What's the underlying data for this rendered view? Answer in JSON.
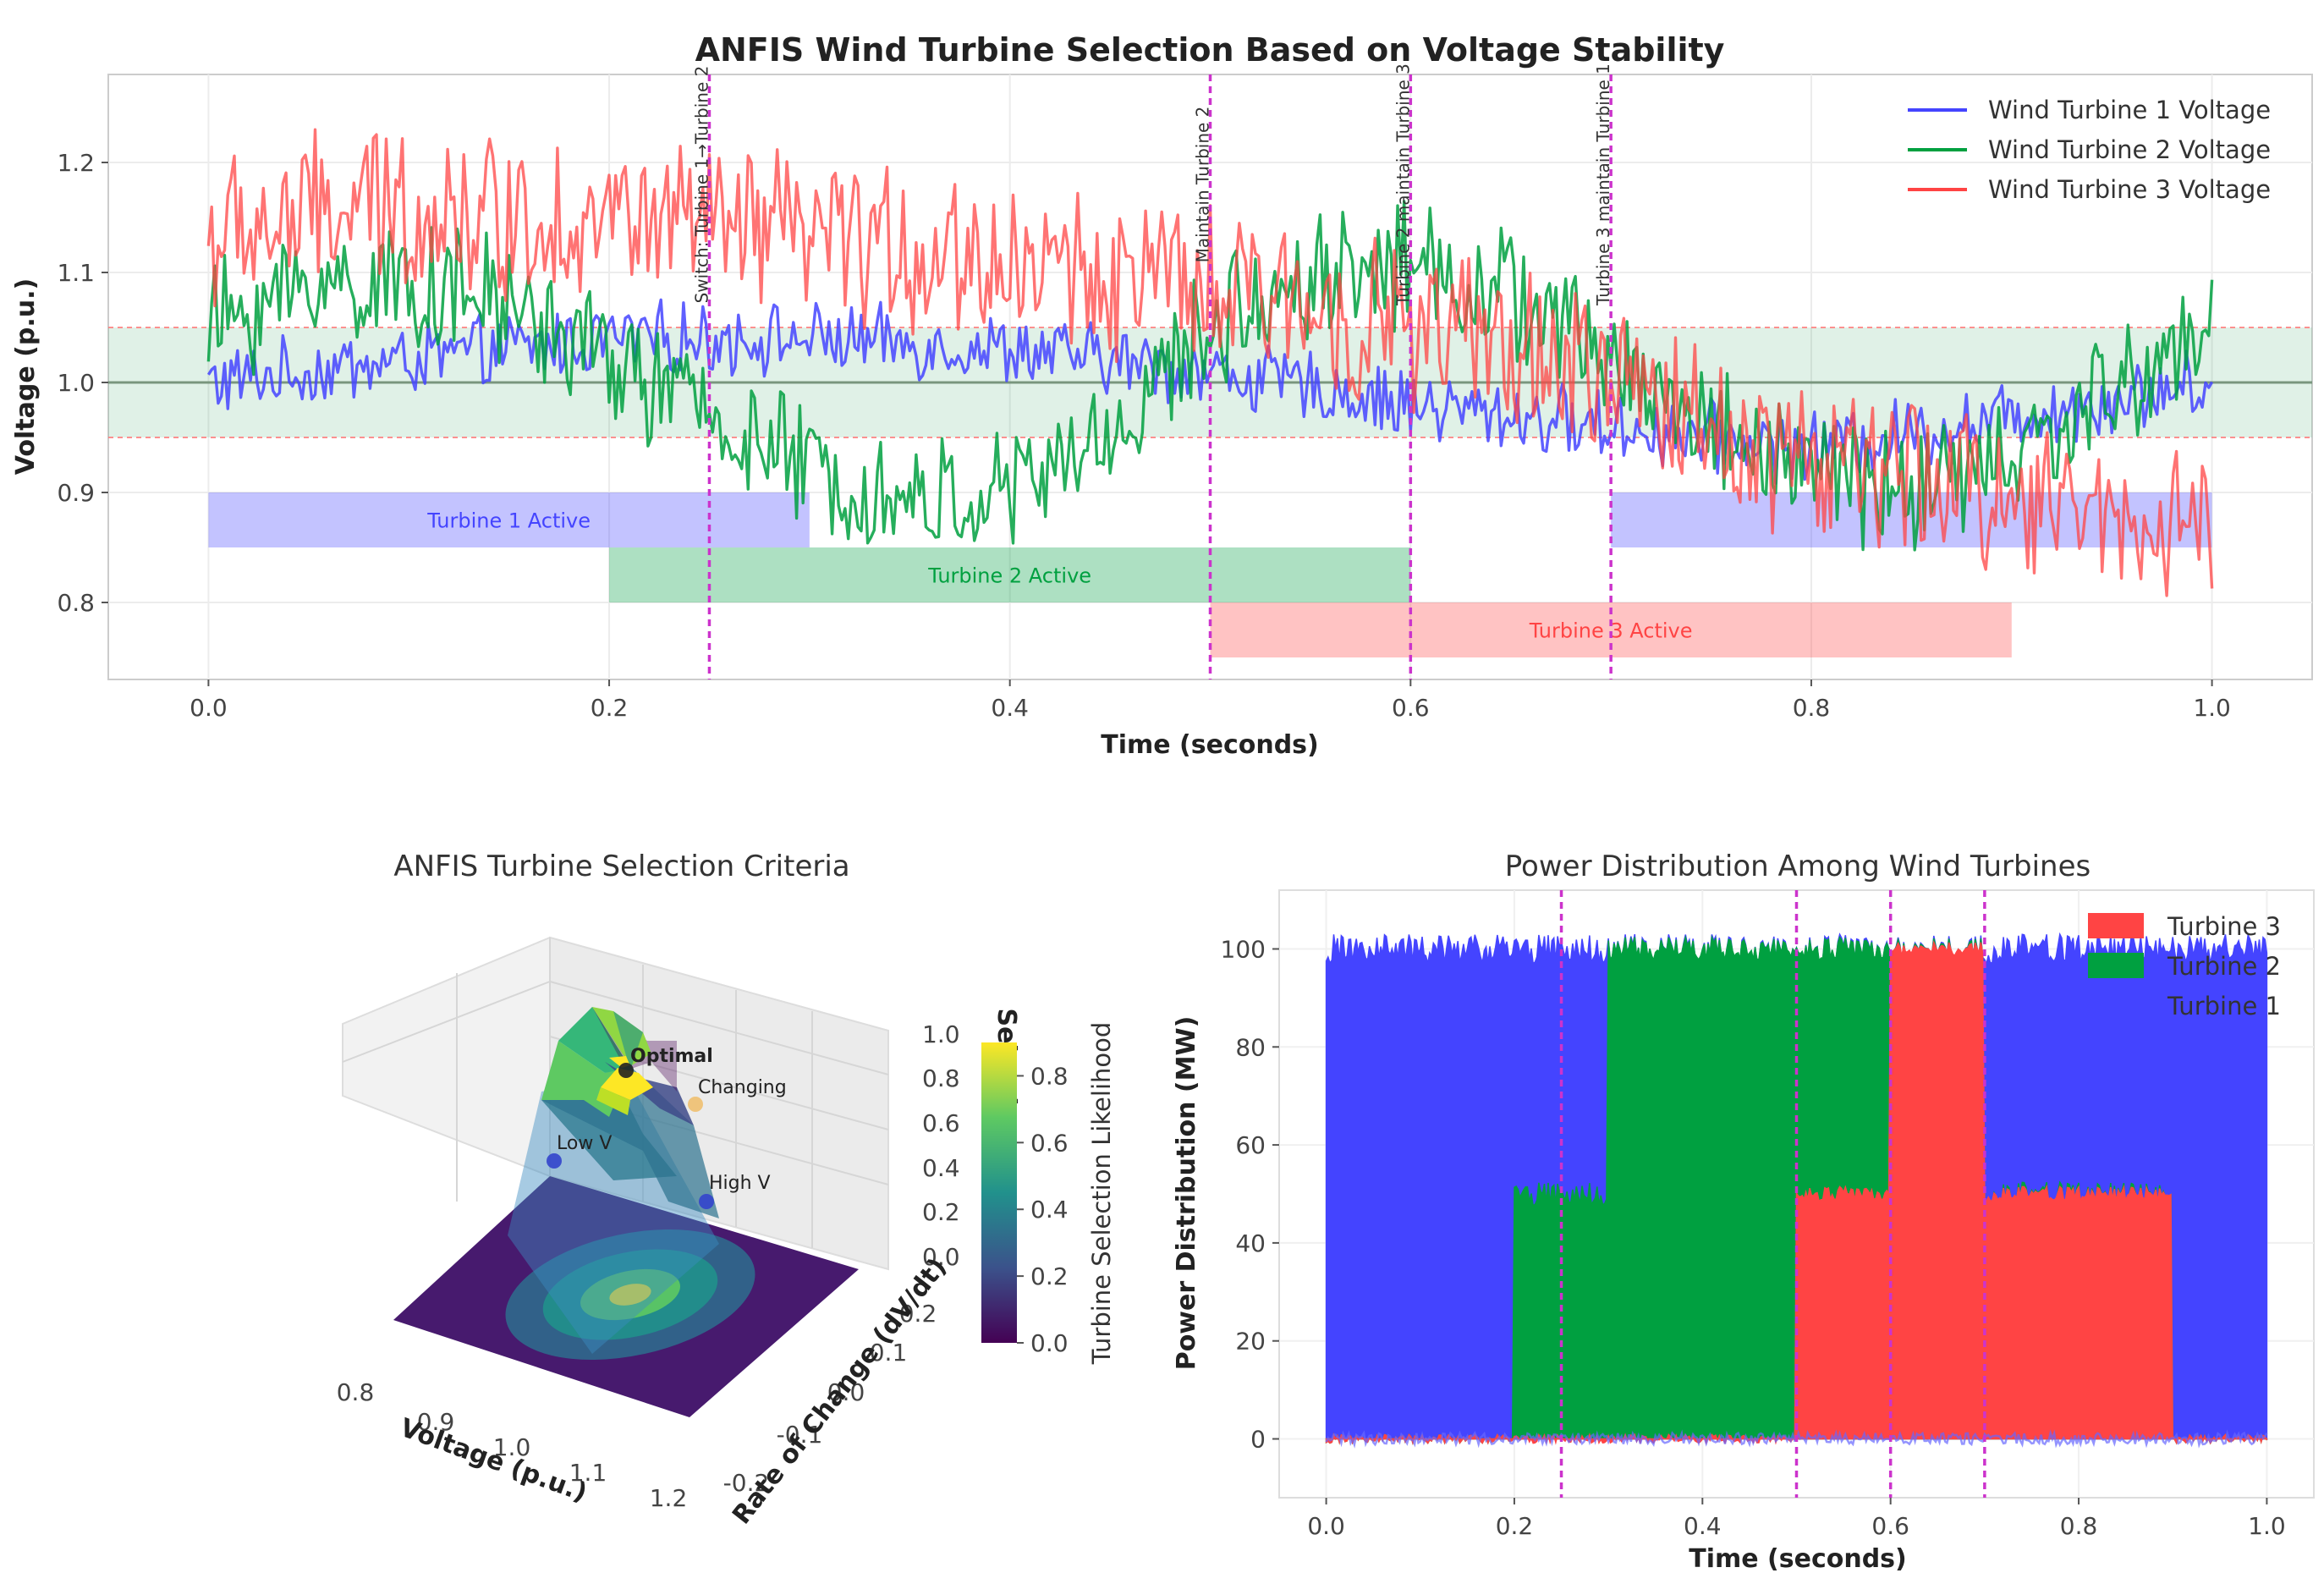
{
  "chart_data": [
    {
      "type": "line",
      "title": "ANFIS Wind Turbine Selection Based on Voltage Stability",
      "xlabel": "Time (seconds)",
      "ylabel": "Voltage (p.u.)",
      "xlim": [
        -0.05,
        1.05
      ],
      "ylim": [
        0.73,
        1.28
      ],
      "xticks": [
        0.0,
        0.2,
        0.4,
        0.6,
        0.8,
        1.0
      ],
      "xtick_labels": [
        "0.0",
        "0.2",
        "0.4",
        "0.6",
        "0.8",
        "1.0"
      ],
      "yticks": [
        0.8,
        0.9,
        1.0,
        1.1,
        1.2
      ],
      "ytick_labels": [
        "0.8",
        "0.9",
        "1.0",
        "1.1",
        "1.2"
      ],
      "grid": true,
      "legend_position": "top-right",
      "stable_band": {
        "low": 0.95,
        "high": 1.05,
        "nominal": 1.0
      },
      "series": [
        {
          "name": "Wind Turbine 1 Voltage",
          "color": "#4444ff",
          "x": [
            0.0,
            0.1,
            0.2,
            0.3,
            0.4,
            0.5,
            0.6,
            0.7,
            0.8,
            0.9,
            1.0
          ],
          "values": [
            1.0,
            1.02,
            1.04,
            1.04,
            1.03,
            1.01,
            0.98,
            0.96,
            0.94,
            0.97,
            1.0
          ]
        },
        {
          "name": "Wind Turbine 2 Voltage",
          "color": "#00a040",
          "x": [
            0.0,
            0.05,
            0.1,
            0.15,
            0.2,
            0.25,
            0.3,
            0.35,
            0.4,
            0.45,
            0.5,
            0.55,
            0.6,
            0.65,
            0.7,
            0.75,
            0.8,
            0.85,
            0.9,
            0.95,
            1.0
          ],
          "values": [
            1.05,
            1.09,
            1.09,
            1.07,
            1.02,
            0.97,
            0.92,
            0.89,
            0.9,
            0.95,
            1.05,
            1.1,
            1.11,
            1.08,
            1.02,
            0.96,
            0.92,
            0.9,
            0.93,
            0.99,
            1.05
          ]
        },
        {
          "name": "Wind Turbine 3 Voltage",
          "color": "#ff4444",
          "x": [
            0.0,
            0.05,
            0.1,
            0.15,
            0.2,
            0.25,
            0.3,
            0.35,
            0.4,
            0.45,
            0.5,
            0.55,
            0.6,
            0.65,
            0.7,
            0.75,
            0.8,
            0.85,
            0.9,
            0.95,
            1.0
          ],
          "values": [
            1.13,
            1.15,
            1.16,
            1.15,
            1.15,
            1.14,
            1.13,
            1.12,
            1.11,
            1.1,
            1.08,
            1.07,
            1.05,
            1.03,
            1.0,
            0.96,
            0.93,
            0.91,
            0.9,
            0.88,
            0.87
          ]
        }
      ],
      "active_bands": [
        {
          "label": "Turbine 1 Active",
          "start": 0.0,
          "end": 0.3,
          "low": 0.85,
          "high": 0.9,
          "color": "#4444ff"
        },
        {
          "label": "",
          "start": 0.7,
          "end": 1.0,
          "low": 0.85,
          "high": 0.9,
          "color": "#4444ff"
        },
        {
          "label": "Turbine 2 Active",
          "start": 0.2,
          "end": 0.6,
          "low": 0.8,
          "high": 0.85,
          "color": "#00a040"
        },
        {
          "label": "Turbine 3 Active",
          "start": 0.5,
          "end": 0.9,
          "low": 0.75,
          "high": 0.8,
          "color": "#ff4444"
        }
      ],
      "switch_lines": [
        {
          "x": 0.25,
          "label": "Switch: Turbine 1→Turbine 2"
        },
        {
          "x": 0.5,
          "label": "Maintain Turbine 2"
        },
        {
          "x": 0.6,
          "label": "Turbine 2 maintain Turbine 3"
        },
        {
          "x": 0.7,
          "label": "Turbine 3 maintain Turbine 1"
        }
      ]
    },
    {
      "type": "surface3d",
      "title": "ANFIS Turbine Selection Criteria",
      "xlabel": "Voltage (p.u.)",
      "ylabel": "Rate of Change (dV/dt)",
      "zlabel": "Selection",
      "colorbar_label": "Turbine Selection Likelihood",
      "colorbar_ticks": [
        "0.0",
        "0.2",
        "0.4",
        "0.6",
        "0.8"
      ],
      "x_ticks": [
        "0.8",
        "0.9",
        "1.0",
        "1.1",
        "1.2"
      ],
      "y_ticks": [
        "-0.2",
        "-0.1",
        "0.0",
        "0.1",
        "0.2"
      ],
      "z_ticks": [
        "0.0",
        "0.2",
        "0.4",
        "0.6",
        "0.8",
        "1.0"
      ],
      "points": [
        {
          "label": "Optimal",
          "voltage": 1.0,
          "rate": 0.0,
          "value": 1.0,
          "color": "#222222"
        },
        {
          "label": "Changing",
          "voltage": 1.0,
          "rate": 0.15,
          "value": 0.7,
          "color": "#f0c070"
        },
        {
          "label": "Low V",
          "voltage": 0.85,
          "rate": 0.0,
          "value": 0.2,
          "color": "#3344cc"
        },
        {
          "label": "High V",
          "voltage": 1.15,
          "rate": 0.0,
          "value": 0.2,
          "color": "#3344cc"
        }
      ]
    },
    {
      "type": "area",
      "stacked": true,
      "title": "Power Distribution Among Wind Turbines",
      "xlabel": "Time (seconds)",
      "ylabel": "Power Distribution (MW)",
      "xlim": [
        -0.05,
        1.05
      ],
      "ylim": [
        -12,
        112
      ],
      "xticks": [
        0.0,
        0.2,
        0.4,
        0.6,
        0.8,
        1.0
      ],
      "xtick_labels": [
        "0.0",
        "0.2",
        "0.4",
        "0.6",
        "0.8",
        "1.0"
      ],
      "yticks": [
        0,
        20,
        40,
        60,
        80,
        100
      ],
      "ytick_labels": [
        "0",
        "20",
        "40",
        "60",
        "80",
        "100"
      ],
      "legend_position": "top-right",
      "segments": [
        0.0,
        0.2,
        0.3,
        0.5,
        0.6,
        0.7,
        0.9,
        1.0
      ],
      "series": [
        {
          "name": "Turbine 1",
          "color": "#4444ff",
          "values": [
            100,
            50,
            0,
            0,
            0,
            50,
            100
          ]
        },
        {
          "name": "Turbine 2",
          "color": "#00a040",
          "values": [
            0,
            50,
            100,
            50,
            0,
            0,
            0
          ]
        },
        {
          "name": "Turbine 3",
          "color": "#ff4444",
          "values": [
            0,
            0,
            0,
            50,
            100,
            50,
            0
          ]
        }
      ],
      "switch_lines": [
        0.25,
        0.5,
        0.6,
        0.7
      ]
    }
  ]
}
